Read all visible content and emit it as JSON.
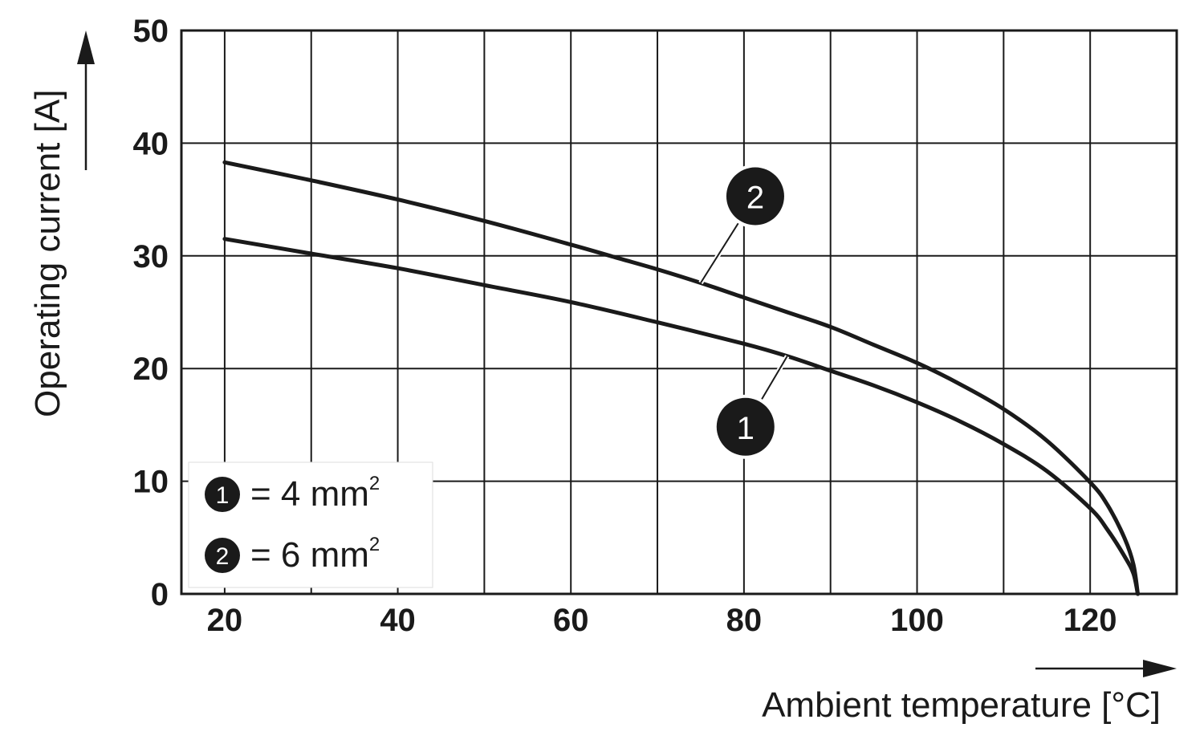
{
  "chart_data": {
    "type": "line",
    "title": "",
    "xlabel": "Ambient temperature [°C]",
    "ylabel": "Operating current [A]",
    "xlim": [
      15,
      130
    ],
    "ylim": [
      0,
      50
    ],
    "xticks": [
      20,
      40,
      60,
      80,
      100,
      120
    ],
    "yticks": [
      0,
      10,
      20,
      30,
      40,
      50
    ],
    "grid": true,
    "legend_position": "bottom-left",
    "series": [
      {
        "id": "1",
        "name": "= 4 mm",
        "superscript": "2",
        "x": [
          20,
          30,
          40,
          50,
          60,
          70,
          80,
          85,
          90,
          95,
          100,
          105,
          110,
          115,
          120,
          122,
          124,
          125,
          125.5
        ],
        "y": [
          31.5,
          30.2,
          28.9,
          27.4,
          25.9,
          24.1,
          22.2,
          21.1,
          19.8,
          18.5,
          17.0,
          15.3,
          13.3,
          10.9,
          7.6,
          5.7,
          3.3,
          1.8,
          0
        ]
      },
      {
        "id": "2",
        "name": "= 6 mm",
        "superscript": "2",
        "x": [
          20,
          30,
          40,
          50,
          60,
          65,
          70,
          75,
          80,
          85,
          90,
          95,
          100,
          105,
          110,
          115,
          120,
          122,
          124,
          125,
          125.5
        ],
        "y": [
          38.3,
          36.7,
          35.0,
          33.1,
          31.0,
          29.9,
          28.8,
          27.6,
          26.3,
          25.0,
          23.7,
          22.1,
          20.5,
          18.6,
          16.4,
          13.6,
          9.9,
          7.9,
          4.9,
          2.6,
          0
        ]
      }
    ],
    "callouts": [
      {
        "label": "1",
        "series": "1",
        "anchor_x": 85,
        "anchor_y": 21.1
      },
      {
        "label": "2",
        "series": "2",
        "anchor_x": 75,
        "anchor_y": 27.6
      }
    ]
  }
}
